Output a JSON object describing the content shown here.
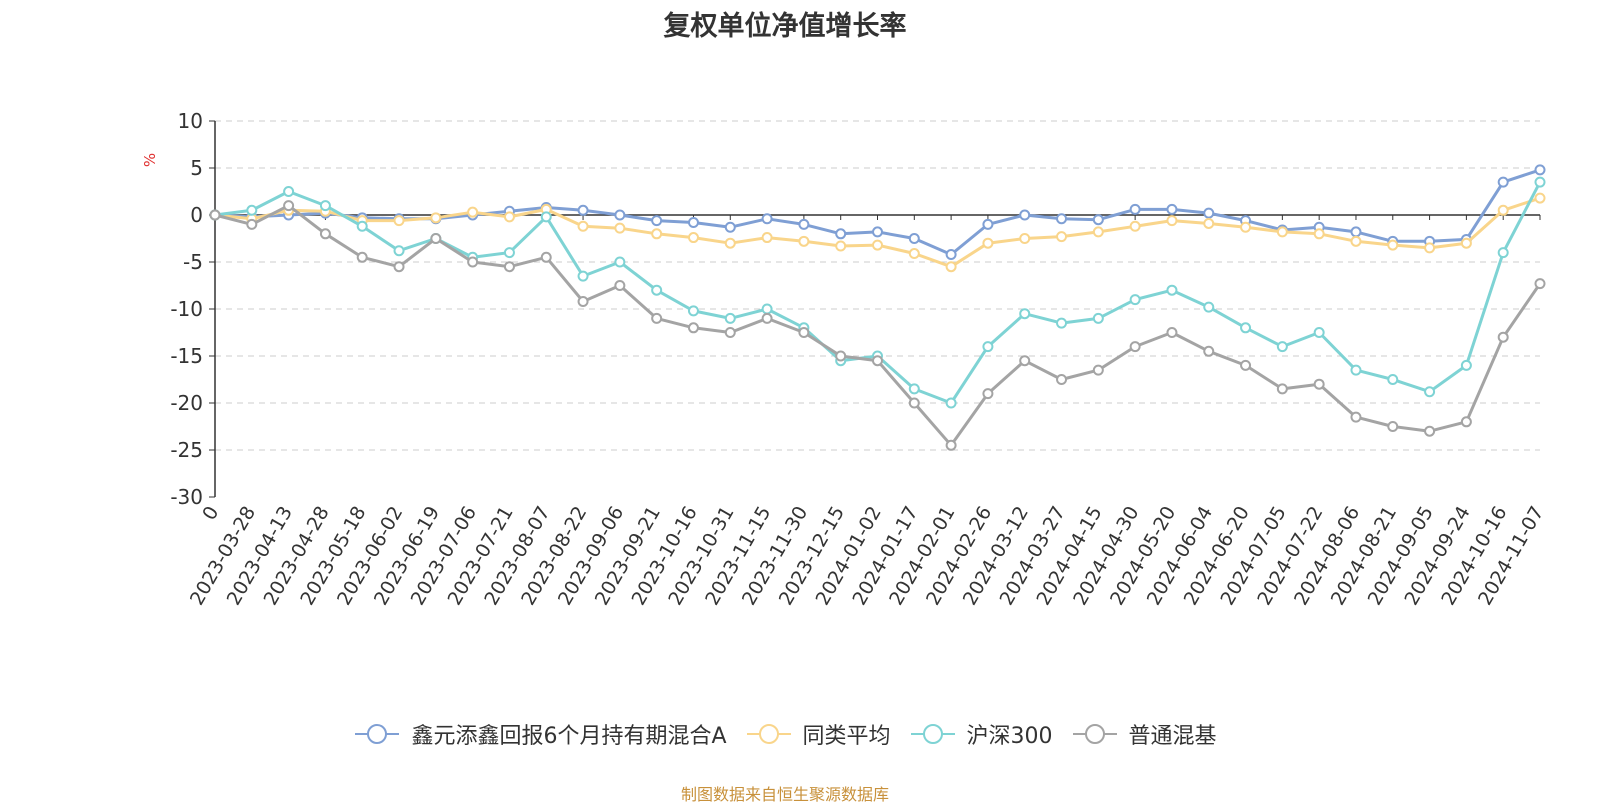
{
  "chart_data": {
    "type": "line",
    "title": "复权单位净值增长率",
    "ylabel": "%",
    "ylim": [
      -30,
      10
    ],
    "yticks": [
      10,
      5,
      0,
      -5,
      -10,
      -15,
      -20,
      -25,
      -30
    ],
    "grid": true,
    "legend_position": "bottom-center",
    "source_note": "制图数据来自恒生聚源数据库",
    "x": [
      "0",
      "2023-03-28",
      "2023-04-13",
      "2023-04-28",
      "2023-05-18",
      "2023-06-02",
      "2023-06-19",
      "2023-07-06",
      "2023-07-21",
      "2023-08-07",
      "2023-08-22",
      "2023-09-06",
      "2023-09-21",
      "2023-10-16",
      "2023-10-31",
      "2023-11-15",
      "2023-11-30",
      "2023-12-15",
      "2024-01-02",
      "2024-01-17",
      "2024-02-01",
      "2024-02-26",
      "2024-03-12",
      "2024-03-27",
      "2024-04-15",
      "2024-04-30",
      "2024-05-20",
      "2024-06-04",
      "2024-06-20",
      "2024-07-05",
      "2024-07-22",
      "2024-08-06",
      "2024-08-21",
      "2024-09-05",
      "2024-09-24",
      "2024-10-16",
      "2024-11-07"
    ],
    "series": [
      {
        "name": "鑫元添鑫回报6个月持有期混合A",
        "color": "#7f9fd4",
        "values": [
          0,
          -0.2,
          0.0,
          0.2,
          -0.3,
          -0.4,
          -0.4,
          0.0,
          0.4,
          0.8,
          0.5,
          0.0,
          -0.6,
          -0.8,
          -1.3,
          -0.4,
          -1.0,
          -2.0,
          -1.8,
          -2.5,
          -4.2,
          -1.0,
          0.0,
          -0.4,
          -0.5,
          0.6,
          0.6,
          0.2,
          -0.6,
          -1.6,
          -1.3,
          -1.8,
          -2.8,
          -2.8,
          -2.6,
          3.5,
          4.8
        ]
      },
      {
        "name": "同类平均",
        "color": "#f9d58b",
        "values": [
          0,
          -0.4,
          0.5,
          0.4,
          -0.6,
          -0.6,
          -0.3,
          0.3,
          -0.2,
          0.6,
          -1.2,
          -1.4,
          -2.0,
          -2.4,
          -3.0,
          -2.4,
          -2.8,
          -3.3,
          -3.2,
          -4.1,
          -5.5,
          -3.0,
          -2.5,
          -2.3,
          -1.8,
          -1.2,
          -0.6,
          -0.9,
          -1.3,
          -1.8,
          -2.0,
          -2.8,
          -3.2,
          -3.5,
          -3.0,
          0.5,
          1.8
        ]
      },
      {
        "name": "沪深300",
        "color": "#7ed3d4",
        "values": [
          0,
          0.5,
          2.5,
          1.0,
          -1.2,
          -3.8,
          -2.5,
          -4.5,
          -4.0,
          -0.2,
          -6.5,
          -5.0,
          -8.0,
          -10.2,
          -11.0,
          -10.0,
          -12.0,
          -15.5,
          -15.0,
          -18.5,
          -20.0,
          -14.0,
          -10.5,
          -11.5,
          -11.0,
          -9.0,
          -8.0,
          -9.8,
          -12.0,
          -14.0,
          -12.5,
          -16.5,
          -17.5,
          -18.8,
          -16.0,
          -4.0,
          3.5
        ]
      },
      {
        "name": "普通混基",
        "color": "#a4a4a4",
        "values": [
          0,
          -1.0,
          1.0,
          -2.0,
          -4.5,
          -5.5,
          -2.5,
          -5.0,
          -5.5,
          -4.5,
          -9.2,
          -7.5,
          -11.0,
          -12.0,
          -12.5,
          -11.0,
          -12.5,
          -15.0,
          -15.5,
          -20.0,
          -24.5,
          -19.0,
          -15.5,
          -17.5,
          -16.5,
          -14.0,
          -12.5,
          -14.5,
          -16.0,
          -18.5,
          -18.0,
          -21.5,
          -22.5,
          -23.0,
          -22.0,
          -13.0,
          -7.3
        ]
      }
    ]
  }
}
